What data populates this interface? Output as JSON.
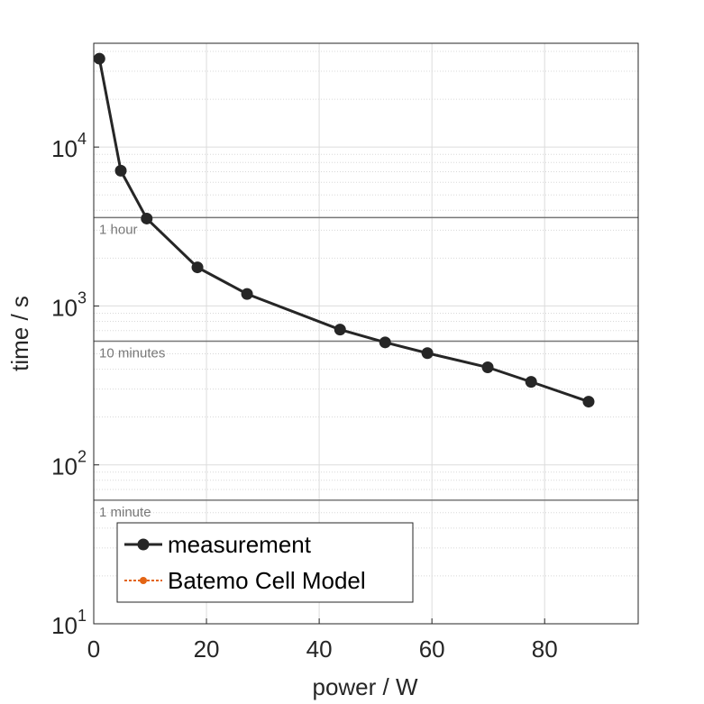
{
  "chart_data": {
    "type": "line",
    "x_label": "power / W",
    "y_label": "time / s",
    "x": [
      1,
      4.8,
      9.4,
      18.4,
      27.2,
      43.7,
      51.7,
      59.2,
      69.9,
      77.6,
      87.8
    ],
    "series": [
      {
        "name": "measurement",
        "color": "#262626",
        "values": [
          36000,
          7100,
          3550,
          1750,
          1190,
          710,
          590,
          505,
          411,
          333,
          250
        ]
      },
      {
        "name": "Batemo Cell Model",
        "color": "#e36414",
        "values": [
          null,
          null,
          null,
          null,
          null,
          null,
          null,
          null,
          null,
          null,
          null
        ]
      }
    ],
    "xlim": [
      0,
      96.6
    ],
    "xticks": [
      0,
      20,
      40,
      60,
      80
    ],
    "ylim": [
      10,
      45000
    ],
    "y_scale": "log",
    "yticks": [
      {
        "value": 10,
        "label": "10^1"
      },
      {
        "value": 100,
        "label": "10^2"
      },
      {
        "value": 1000,
        "label": "10^3"
      },
      {
        "value": 10000,
        "label": "10^4"
      }
    ],
    "reference_lines": [
      {
        "value": 3600,
        "label": "1 hour"
      },
      {
        "value": 600,
        "label": "10 minutes"
      },
      {
        "value": 60,
        "label": "1 minute"
      }
    ],
    "grid": true,
    "legend": "lower left"
  }
}
